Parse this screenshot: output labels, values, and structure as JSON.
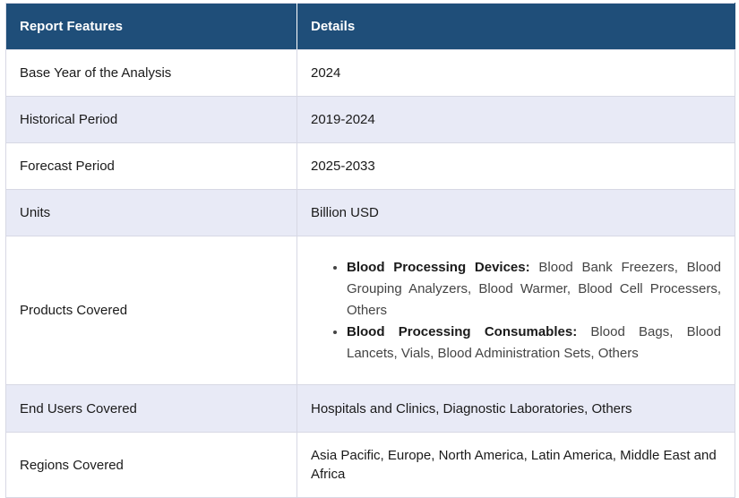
{
  "header": {
    "col1": "Report Features",
    "col2": "Details"
  },
  "rows": [
    {
      "feature": "Base Year of the Analysis",
      "details": "2024"
    },
    {
      "feature": "Historical Period",
      "details": "2019-2024"
    },
    {
      "feature": "Forecast Period",
      "details": "2025-2033"
    },
    {
      "feature": "Units",
      "details": "Billion USD"
    },
    {
      "feature": "Products Covered",
      "items": [
        {
          "title": "Blood Processing Devices:",
          "text": " Blood Bank Freezers, Blood Grouping Analyzers, Blood Warmer, Blood Cell Processers, Others"
        },
        {
          "title": "Blood Processing Consumables:",
          "text": " Blood Bags, Blood Lancets, Vials, Blood Administration Sets, Others"
        }
      ]
    },
    {
      "feature": "End Users Covered",
      "details": "Hospitals and Clinics, Diagnostic Laboratories, Others"
    },
    {
      "feature": "Regions Covered",
      "details": "Asia Pacific, Europe, North America, Latin America, Middle East and Africa"
    }
  ]
}
